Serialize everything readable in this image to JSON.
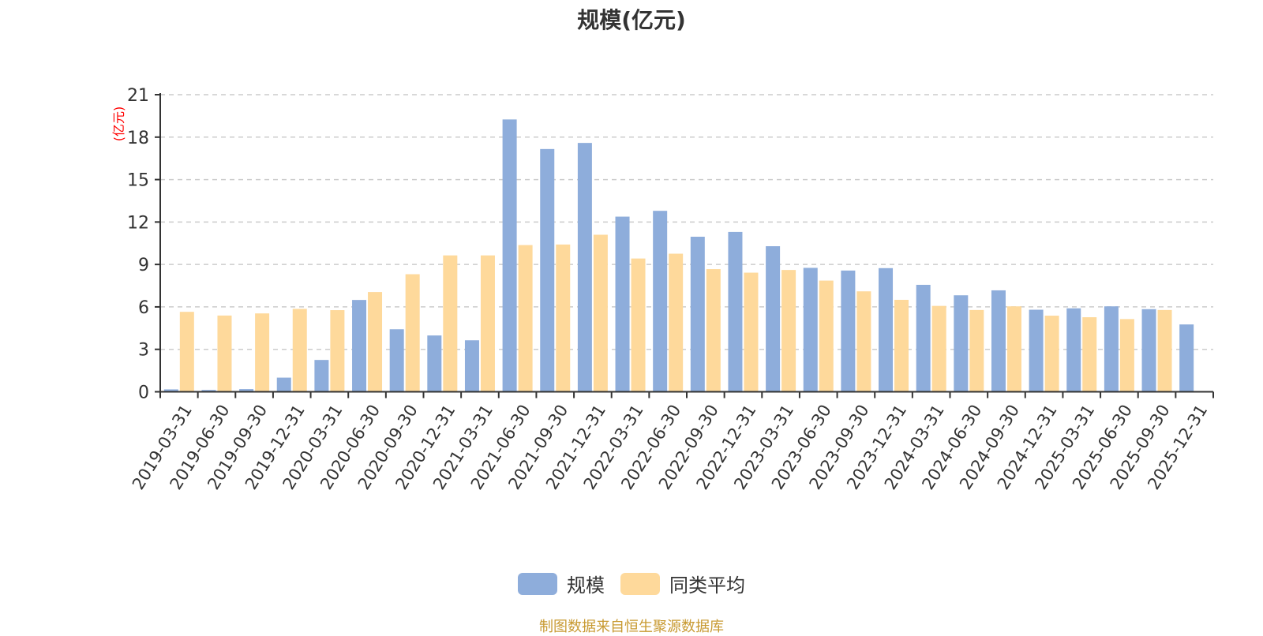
{
  "title": "规模(亿元)",
  "unit_label": "(亿元)",
  "footer": "制图数据来自恒生聚源数据库",
  "colors": {
    "series_scale": "#8eaddb",
    "series_avg": "#fed99b",
    "grid": "#cccccc",
    "axis": "#333333",
    "unit": "#ff0000",
    "footer": "#c89a32"
  },
  "legend": [
    {
      "name": "规模",
      "color": "#8eaddb"
    },
    {
      "name": "同类平均",
      "color": "#fed99b"
    }
  ],
  "chart_data": {
    "type": "bar",
    "title": "规模(亿元)",
    "xlabel": "",
    "ylabel": "(亿元)",
    "ylim": [
      0,
      21
    ],
    "yticks": [
      0,
      3,
      6,
      9,
      12,
      15,
      18,
      21
    ],
    "grid": true,
    "legend_position": "bottom",
    "categories": [
      "2019-03-31",
      "2019-06-30",
      "2019-09-30",
      "2019-12-31",
      "2020-03-31",
      "2020-06-30",
      "2020-09-30",
      "2020-12-31",
      "2021-03-31",
      "2021-06-30",
      "2021-09-30",
      "2021-12-31",
      "2022-03-31",
      "2022-06-30",
      "2022-09-30",
      "2022-12-31",
      "2023-03-31",
      "2023-06-30",
      "2023-09-30",
      "2023-12-31",
      "2024-03-31",
      "2024-06-30",
      "2024-09-30",
      "2024-12-31",
      "2025-03-31",
      "2025-06-30",
      "2025-09-30",
      "2025-12-31"
    ],
    "series": [
      {
        "name": "规模",
        "values": [
          0.17,
          0.13,
          0.19,
          1.0,
          2.25,
          6.49,
          4.42,
          3.98,
          3.64,
          19.25,
          17.16,
          17.59,
          12.38,
          12.79,
          10.96,
          11.3,
          10.29,
          8.76,
          8.57,
          8.74,
          7.56,
          6.82,
          7.17,
          5.8,
          5.9,
          6.04,
          5.84,
          4.76
        ]
      },
      {
        "name": "同类平均",
        "values": [
          5.65,
          5.39,
          5.54,
          5.86,
          5.77,
          7.05,
          8.31,
          9.64,
          9.64,
          10.37,
          10.41,
          11.1,
          9.42,
          9.76,
          8.67,
          8.42,
          8.61,
          7.86,
          7.1,
          6.5,
          6.07,
          5.78,
          6.04,
          5.38,
          5.27,
          5.14,
          5.78,
          null
        ]
      }
    ]
  }
}
